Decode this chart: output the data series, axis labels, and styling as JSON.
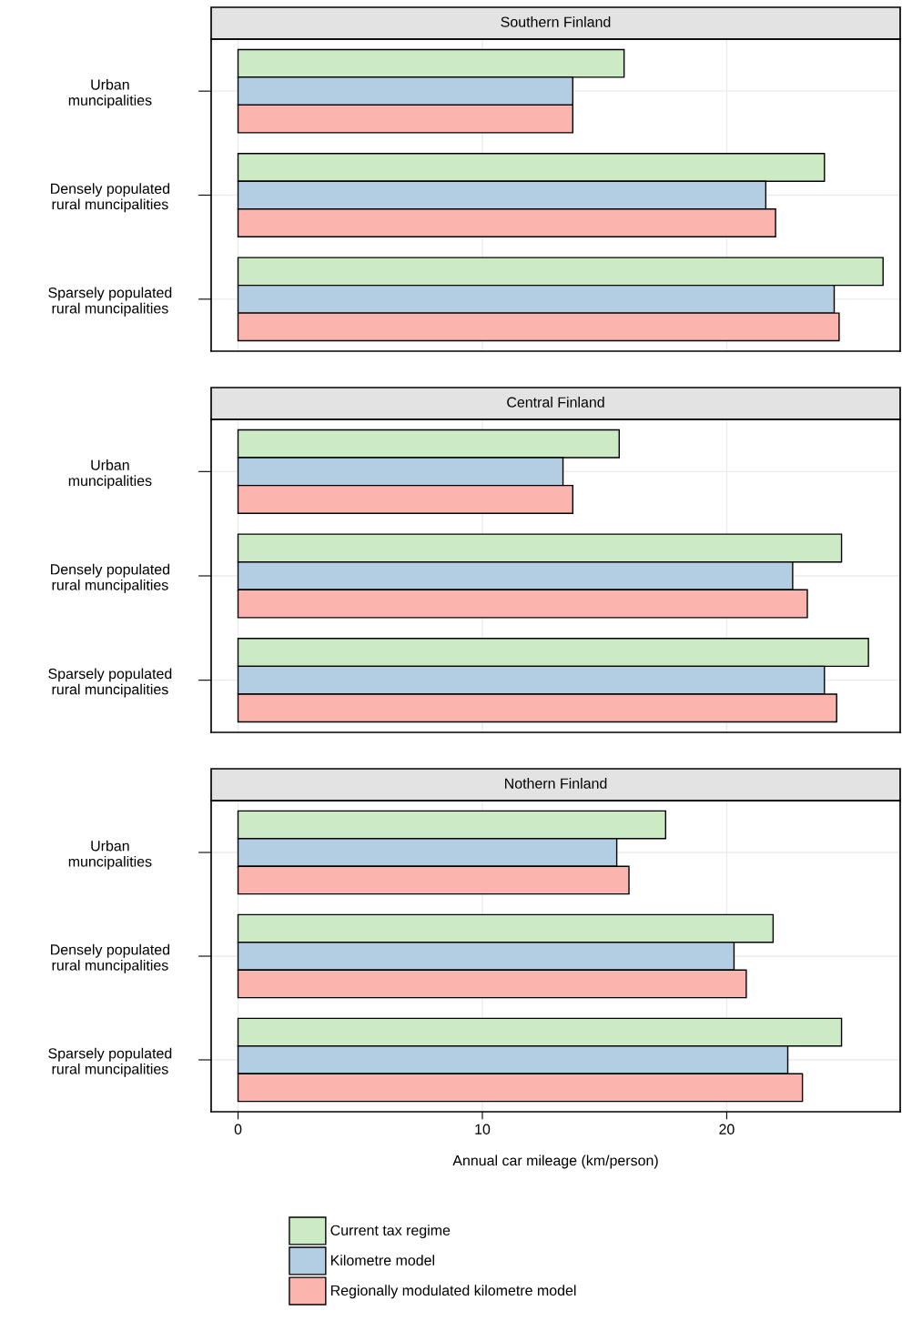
{
  "chart_data": [
    {
      "type": "bar",
      "orientation": "horizontal",
      "title": "Southern Finland",
      "categories": [
        "Urban\nmuncipalities",
        "Densely populated\nrural muncipalities",
        "Sparsely populated\nrural muncipalities"
      ],
      "series": [
        {
          "color": "#ccebc5",
          "values": [
            15.8,
            24.0,
            26.4
          ]
        },
        {
          "color": "#b3cde3",
          "values": [
            13.7,
            21.6,
            24.4
          ]
        },
        {
          "color": "#fbb4ae",
          "values": [
            13.7,
            22.0,
            24.6
          ]
        }
      ],
      "xlim": [
        -1.1,
        27.1
      ],
      "xticks": [
        0,
        10,
        20
      ],
      "tick_labels": "y",
      "grid": true
    },
    {
      "type": "bar",
      "orientation": "horizontal",
      "title": "Central Finland",
      "categories": [
        "Urban\nmuncipalities",
        "Densely populated\nrural muncipalities",
        "Sparsely populated\nrural muncipalities"
      ],
      "series": [
        {
          "color": "#ccebc5",
          "values": [
            15.6,
            24.7,
            25.8
          ]
        },
        {
          "color": "#b3cde3",
          "values": [
            13.3,
            22.7,
            24.0
          ]
        },
        {
          "color": "#fbb4ae",
          "values": [
            13.7,
            23.3,
            24.5
          ]
        }
      ],
      "xlim": [
        -1.1,
        27.1
      ],
      "xticks": [
        0,
        10,
        20
      ],
      "tick_labels": "y",
      "grid": true
    },
    {
      "type": "bar",
      "orientation": "horizontal",
      "title": "Nothern Finland",
      "categories": [
        "Urban\nmuncipalities",
        "Densely populated\nrural muncipalities",
        "Sparsely populated\nrural muncipalities"
      ],
      "series": [
        {
          "name": "Current tax regime",
          "color": "#ccebc5",
          "values": [
            17.5,
            21.9,
            24.7
          ]
        },
        {
          "name": "Kilometre model",
          "color": "#b3cde3",
          "values": [
            15.5,
            20.3,
            22.5
          ]
        },
        {
          "name": "Regionally modulated kilometre model",
          "color": "#fbb4ae",
          "values": [
            16.0,
            20.8,
            23.1
          ]
        }
      ],
      "xlim": [
        -1.1,
        27.1
      ],
      "xticks": [
        0,
        10,
        20
      ],
      "xlabel": "Annual car mileage (km/person)",
      "grid": true,
      "legend": "bottom"
    }
  ]
}
